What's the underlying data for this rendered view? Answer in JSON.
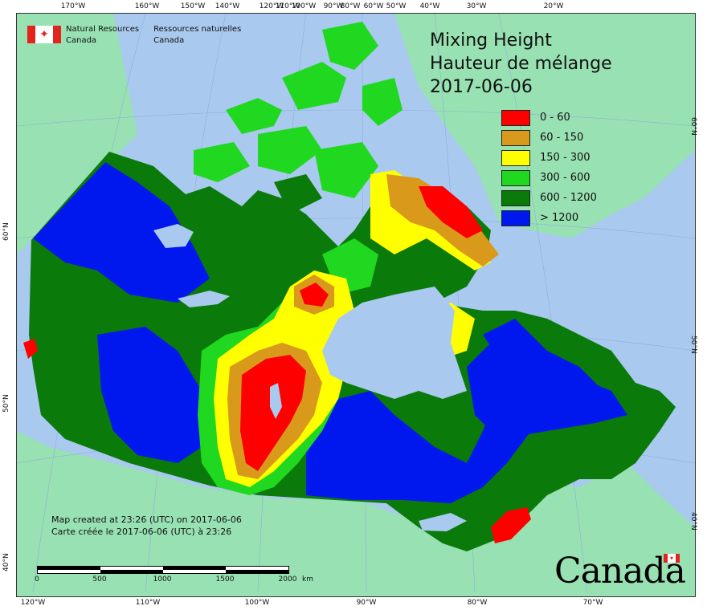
{
  "agency": {
    "name_en": [
      "Natural Resources",
      "Canada"
    ],
    "name_fr": [
      "Ressources naturelles",
      "Canada"
    ]
  },
  "title": {
    "line1": "Mixing Height",
    "line2": "Hauteur de mélange",
    "date": "2017-06-06"
  },
  "legend": [
    {
      "label": "0 - 60",
      "color": "#ff0000"
    },
    {
      "label": "60 - 150",
      "color": "#d99a1b"
    },
    {
      "label": "150 - 300",
      "color": "#ffff00"
    },
    {
      "label": "300 - 600",
      "color": "#1fd81f"
    },
    {
      "label": "600 - 1200",
      "color": "#0a7a0a"
    },
    {
      "label": "> 1200",
      "color": "#0018ee"
    }
  ],
  "credit": {
    "en": "Map created at 23:26 (UTC) on 2017-06-06",
    "fr": "Carte créée le 2017-06-06 (UTC) à 23:26"
  },
  "scale": {
    "labels": [
      "0",
      "500",
      "1000",
      "1500",
      "2000"
    ],
    "unit": "km"
  },
  "ticks": {
    "top": [
      "170°W",
      "160°W",
      "150°W",
      "140°W",
      "120°W",
      "110°W",
      "100°W",
      "90°W",
      "80°W",
      "60°W",
      "50°W",
      "40°W",
      "30°W",
      "20°W"
    ],
    "bottom": [
      "120°W",
      "110°W",
      "100°W",
      "90°W",
      "80°W",
      "70°W"
    ],
    "left": [
      "60°N",
      "50°N",
      "40°N"
    ],
    "right": [
      "60°N",
      "50°N",
      "40°N"
    ]
  },
  "wordmark": "Canada",
  "colors": {
    "ocean": "#a9c9ee",
    "foreign_land": "#98e1b2",
    "lake": "#a9c9ee"
  }
}
